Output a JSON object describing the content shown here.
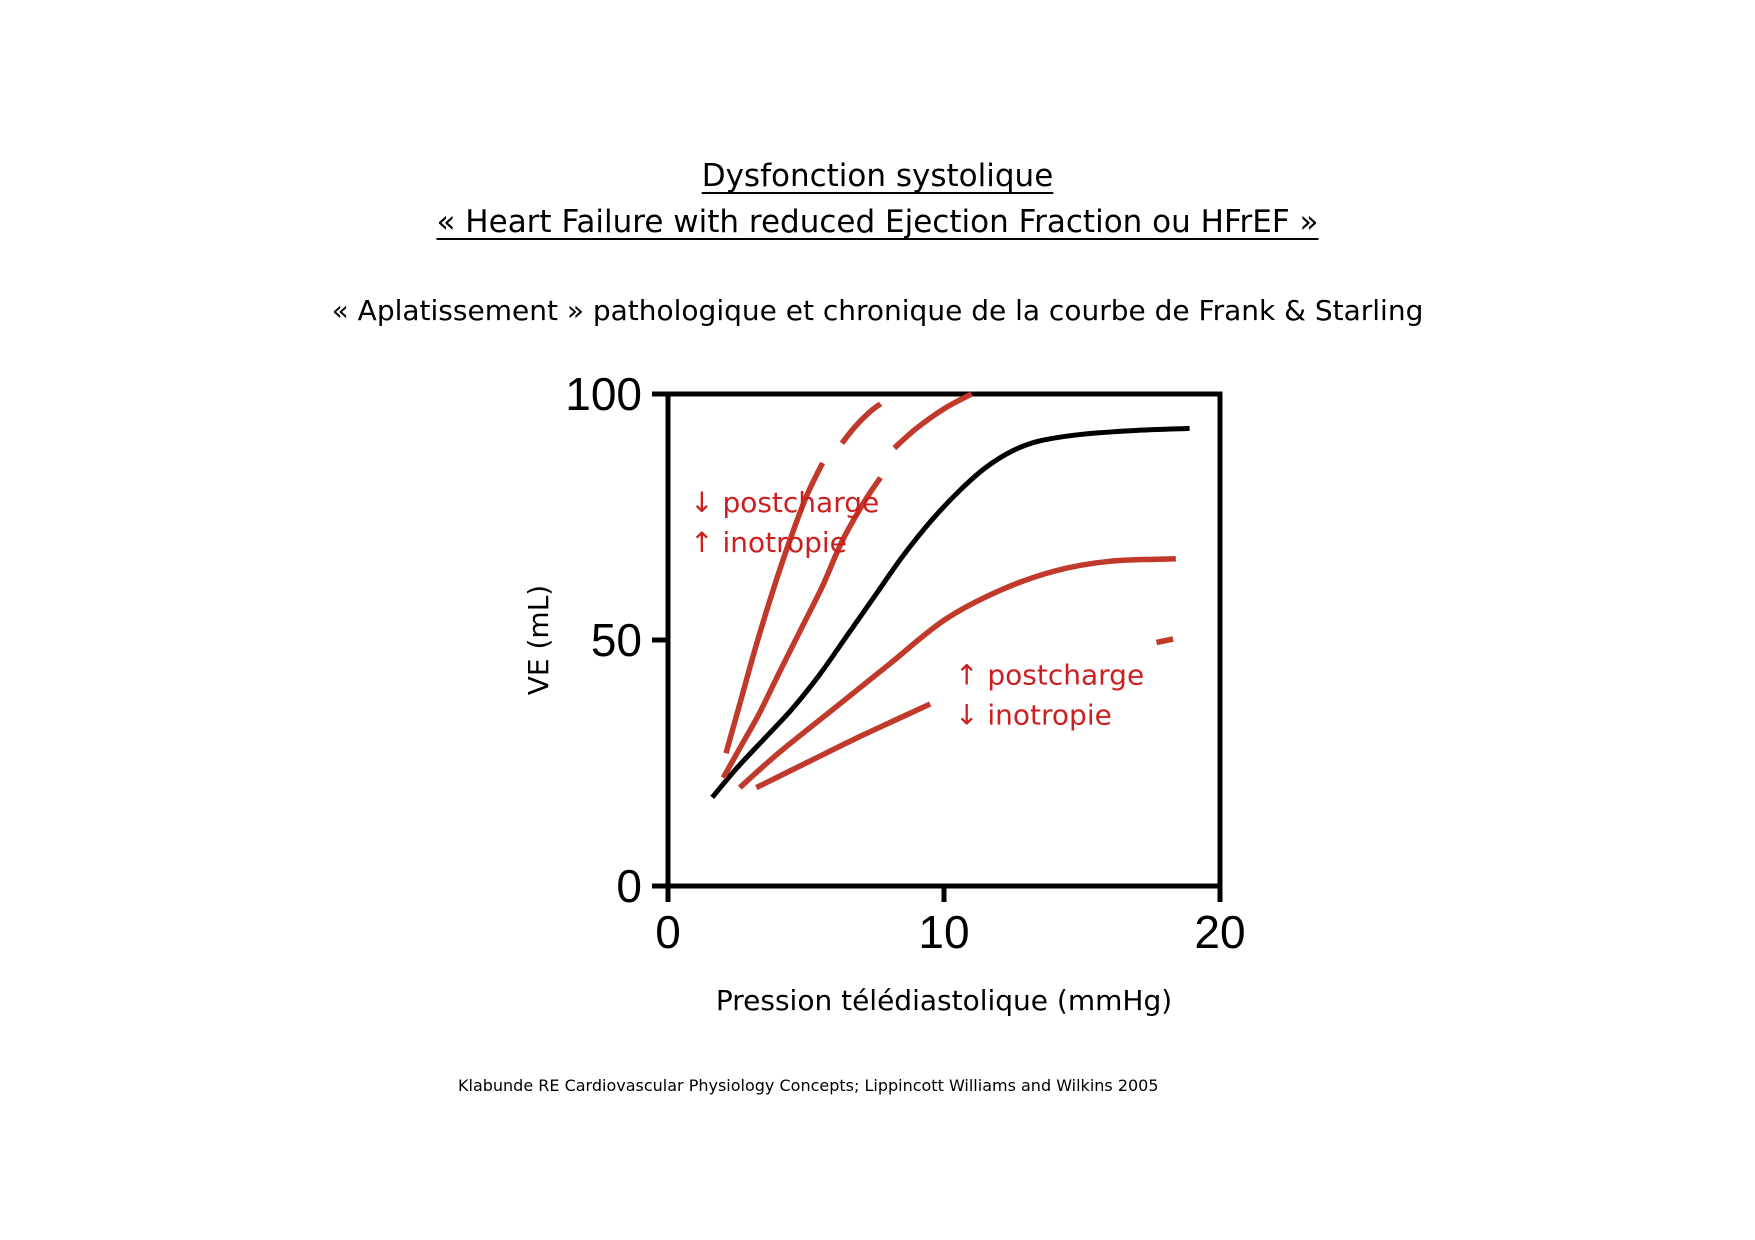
{
  "header": {
    "title_line1": "Dysfonction systolique",
    "title_line2": "« Heart Failure with reduced Ejection Fraction ou HFrEF »",
    "subtitle": "« Aplatissement » pathologique et chronique de la courbe de Frank & Starling"
  },
  "chart_data": {
    "type": "line",
    "xlabel": "Pression télédiastolique (mmHg)",
    "ylabel": "VE (mL)",
    "xlim": [
      0,
      20
    ],
    "ylim": [
      0,
      100
    ],
    "x_ticks": [
      0,
      10,
      20
    ],
    "y_ticks": [
      0,
      50,
      100
    ],
    "grid": false,
    "colors": {
      "normal": "#000000",
      "altered": "#c0392b",
      "annotation": "#cc1f1f"
    },
    "series": [
      {
        "group": "normal",
        "x": [
          1.6,
          2.5,
          3.5,
          4.5,
          5.5,
          6.5,
          7.5,
          8.5,
          9.5,
          10.5,
          11.5,
          12.5,
          13.5,
          15,
          17,
          18.9
        ],
        "y": [
          18,
          24,
          30,
          36,
          43,
          51,
          59,
          67,
          74,
          80,
          85,
          88.5,
          90.5,
          91.8,
          92.6,
          93
        ]
      },
      {
        "group": "altered",
        "x": [
          2.1,
          2.6,
          3.2,
          3.8,
          4.4,
          5.0,
          5.6
        ],
        "y": [
          27,
          37,
          49,
          60,
          70,
          79,
          86
        ]
      },
      {
        "group": "altered",
        "x": [
          6.3,
          6.8,
          7.3,
          7.7
        ],
        "y": [
          90,
          93.5,
          96.3,
          98
        ]
      },
      {
        "group": "altered",
        "x": [
          2.0,
          2.6,
          3.3,
          4.0,
          4.8,
          5.6,
          6.3,
          7.1,
          7.7
        ],
        "y": [
          22,
          28,
          35,
          43,
          52,
          61,
          70,
          78,
          83
        ]
      },
      {
        "group": "altered",
        "x": [
          8.2,
          9.0,
          10.0,
          11.0
        ],
        "y": [
          89,
          93,
          97,
          100
        ]
      },
      {
        "group": "altered",
        "x": [
          2.6,
          4.0,
          6.0,
          8.0,
          10.0,
          12.0,
          14.0,
          16.0,
          18.4
        ],
        "y": [
          20,
          27,
          36,
          45,
          54,
          60,
          64,
          66,
          66.5
        ]
      },
      {
        "group": "altered",
        "x": [
          3.2,
          5.0,
          7.0,
          9.5
        ],
        "y": [
          20,
          25,
          30.5,
          37
        ]
      },
      {
        "group": "altered",
        "x": [
          17.7,
          18.3
        ],
        "y": [
          49.5,
          50.2
        ]
      }
    ],
    "annotations": [
      {
        "id": "upper",
        "line1": "↓ postcharge",
        "line2": "↑ inotropie",
        "x": 0.8,
        "y": 76
      },
      {
        "id": "lower",
        "line1": "↑ postcharge",
        "line2": "↓ inotropie",
        "x": 10.4,
        "y": 41
      }
    ]
  },
  "footer": {
    "citation": "Klabunde RE Cardiovascular Physiology Concepts; Lippincott Williams and Wilkins 2005"
  }
}
